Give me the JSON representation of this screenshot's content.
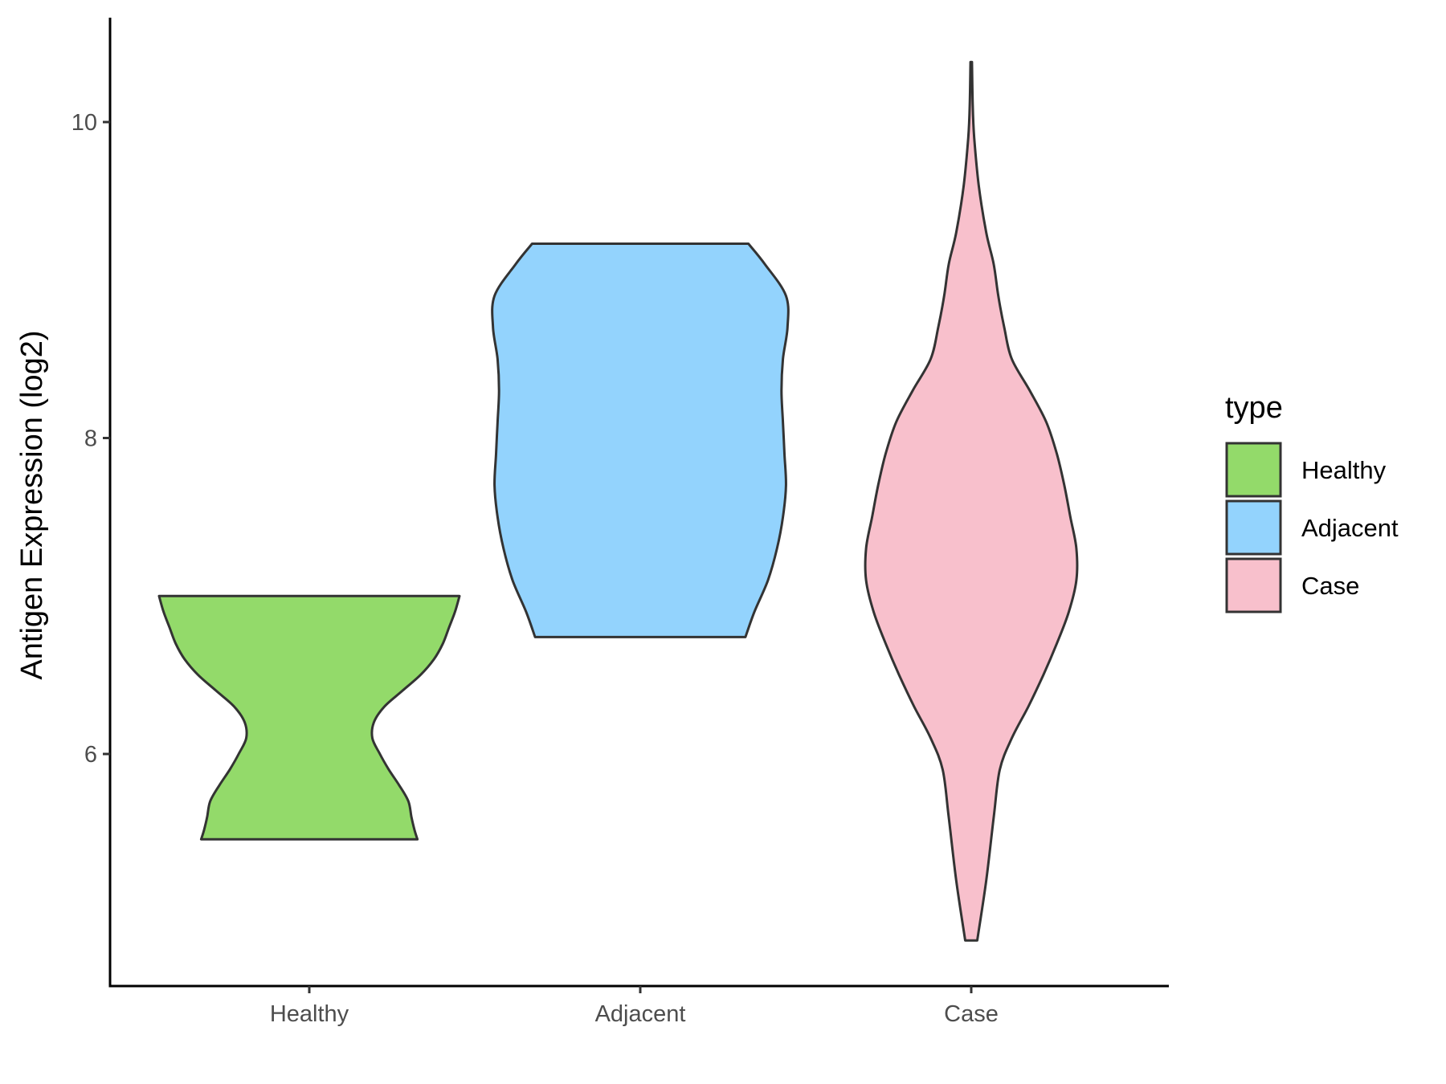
{
  "chart_data": {
    "type": "violin",
    "ylabel": "Antigen Expression (log2)",
    "xlabel": "",
    "categories": [
      "Healthy",
      "Adjacent",
      "Case"
    ],
    "ylim": [
      4.7,
      10.8
    ],
    "yticks": [
      6,
      8,
      10
    ],
    "grid": false,
    "legend": {
      "title": "type",
      "position": "right",
      "entries": [
        "Healthy",
        "Adjacent",
        "Case"
      ]
    },
    "colors": {
      "Healthy": "#93DA6A",
      "Adjacent": "#93D3FD",
      "Case": "#F8C0CC"
    },
    "series": [
      {
        "category": "Healthy",
        "min": 5.46,
        "max": 7.0,
        "density_profile": [
          [
            5.46,
            0.72
          ],
          [
            5.52,
            0.7
          ],
          [
            5.6,
            0.68
          ],
          [
            5.7,
            0.66
          ],
          [
            5.8,
            0.6
          ],
          [
            5.9,
            0.53
          ],
          [
            6.0,
            0.47
          ],
          [
            6.1,
            0.42
          ],
          [
            6.2,
            0.43
          ],
          [
            6.3,
            0.5
          ],
          [
            6.4,
            0.62
          ],
          [
            6.5,
            0.74
          ],
          [
            6.6,
            0.83
          ],
          [
            6.7,
            0.89
          ],
          [
            6.8,
            0.93
          ],
          [
            6.9,
            0.97
          ],
          [
            7.0,
            1.0
          ]
        ]
      },
      {
        "category": "Adjacent",
        "min": 6.74,
        "max": 9.23,
        "density_profile": [
          [
            6.74,
            0.7
          ],
          [
            6.9,
            0.76
          ],
          [
            7.1,
            0.85
          ],
          [
            7.3,
            0.91
          ],
          [
            7.5,
            0.95
          ],
          [
            7.7,
            0.97
          ],
          [
            7.9,
            0.96
          ],
          [
            8.1,
            0.95
          ],
          [
            8.3,
            0.94
          ],
          [
            8.5,
            0.95
          ],
          [
            8.7,
            0.98
          ],
          [
            8.9,
            0.97
          ],
          [
            9.1,
            0.83
          ],
          [
            9.23,
            0.72
          ]
        ]
      },
      {
        "category": "Case",
        "min": 4.82,
        "max": 10.38,
        "density_profile": [
          [
            4.82,
            0.04
          ],
          [
            5.2,
            0.1
          ],
          [
            5.6,
            0.15
          ],
          [
            5.9,
            0.19
          ],
          [
            6.1,
            0.27
          ],
          [
            6.3,
            0.38
          ],
          [
            6.5,
            0.48
          ],
          [
            6.7,
            0.57
          ],
          [
            6.9,
            0.65
          ],
          [
            7.1,
            0.7
          ],
          [
            7.3,
            0.7
          ],
          [
            7.5,
            0.66
          ],
          [
            7.7,
            0.62
          ],
          [
            7.9,
            0.57
          ],
          [
            8.1,
            0.5
          ],
          [
            8.3,
            0.39
          ],
          [
            8.5,
            0.27
          ],
          [
            8.7,
            0.22
          ],
          [
            8.9,
            0.18
          ],
          [
            9.1,
            0.15
          ],
          [
            9.3,
            0.1
          ],
          [
            9.6,
            0.05
          ],
          [
            9.9,
            0.02
          ],
          [
            10.1,
            0.01
          ],
          [
            10.38,
            0.005
          ]
        ]
      }
    ]
  }
}
